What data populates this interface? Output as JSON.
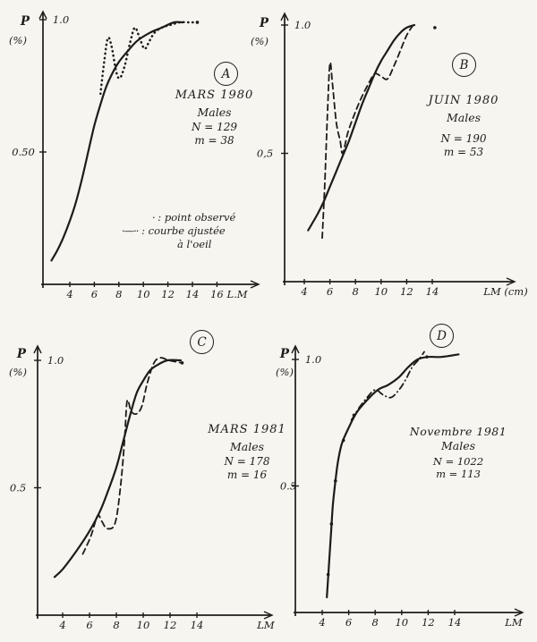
{
  "page": {
    "background": "#f6f5f0",
    "ink": "#1d1c1a"
  },
  "legend": {
    "row1_symbol": "·",
    "row1_label": " : point observé",
    "row2_symbol": "·—··",
    "row2_label": " : courbe ajustée",
    "row3_label": "à l'oeil"
  },
  "chart_data": [
    {
      "id": "A",
      "type": "line",
      "panel_label": "A",
      "title": "MARS 1980",
      "subtitle": "Males",
      "n_label": "N = 129",
      "m_label": "m = 38",
      "y_label": "P",
      "y_label2": "(%)",
      "x_axis_label": "L.M",
      "xlim": [
        2,
        17.5
      ],
      "ylim": [
        0,
        1.05
      ],
      "grid": false,
      "x_ticks": [
        4,
        6,
        8,
        10,
        12,
        14,
        16
      ],
      "y_ticks": [
        {
          "value": 1.0,
          "label": "1.0",
          "side": "right"
        },
        {
          "value": 0.5,
          "label": "0.50",
          "side": "left"
        }
      ],
      "series": [
        {
          "name": "courbe ajustée à l'oeil",
          "style": "solid",
          "points": [
            [
              2.5,
              0.09
            ],
            [
              3,
              0.13
            ],
            [
              3.5,
              0.18
            ],
            [
              4,
              0.24
            ],
            [
              4.5,
              0.31
            ],
            [
              5,
              0.4
            ],
            [
              5.5,
              0.5
            ],
            [
              6,
              0.6
            ],
            [
              6.5,
              0.68
            ],
            [
              7,
              0.75
            ],
            [
              7.5,
              0.8
            ],
            [
              8,
              0.84
            ],
            [
              8.7,
              0.88
            ],
            [
              9.5,
              0.92
            ],
            [
              10.5,
              0.95
            ],
            [
              11.5,
              0.97
            ],
            [
              12.5,
              0.99
            ],
            [
              13.2,
              0.99
            ]
          ]
        },
        {
          "name": "points observés",
          "style": "dotted",
          "points": [
            [
              6.5,
              0.72
            ],
            [
              6.8,
              0.84
            ],
            [
              7.1,
              0.93
            ],
            [
              7.4,
              0.9
            ],
            [
              7.8,
              0.8
            ],
            [
              8.1,
              0.78
            ],
            [
              8.5,
              0.83
            ],
            [
              8.9,
              0.91
            ],
            [
              9.3,
              0.97
            ],
            [
              9.7,
              0.93
            ],
            [
              10.1,
              0.89
            ],
            [
              10.5,
              0.92
            ],
            [
              10.9,
              0.95
            ],
            [
              11.5,
              0.97
            ],
            [
              12.2,
              0.98
            ],
            [
              13,
              0.99
            ],
            [
              13.8,
              0.99
            ],
            [
              14.4,
              0.99
            ]
          ]
        }
      ],
      "markers": [
        [
          14.4,
          0.99
        ]
      ]
    },
    {
      "id": "B",
      "type": "line",
      "panel_label": "B",
      "title": "JUIN 1980",
      "subtitle": "Males",
      "n_label": "N = 190",
      "m_label": "m = 53",
      "y_label": "P",
      "y_label2": "(%)",
      "x_axis_label": "LM (cm)",
      "xlim": [
        3,
        16.5
      ],
      "ylim": [
        0,
        1.05
      ],
      "grid": false,
      "x_ticks": [
        4,
        6,
        8,
        10,
        12,
        14
      ],
      "y_ticks": [
        {
          "value": 1.0,
          "label": "1.0",
          "side": "right"
        },
        {
          "value": 0.5,
          "label": "0,5",
          "side": "left"
        }
      ],
      "series": [
        {
          "name": "courbe ajustée à l'oeil",
          "style": "solid",
          "points": [
            [
              4.3,
              0.2
            ],
            [
              5,
              0.26
            ],
            [
              5.5,
              0.31
            ],
            [
              6,
              0.37
            ],
            [
              6.5,
              0.43
            ],
            [
              7,
              0.49
            ],
            [
              7.5,
              0.55
            ],
            [
              8,
              0.62
            ],
            [
              8.5,
              0.69
            ],
            [
              9,
              0.75
            ],
            [
              9.5,
              0.81
            ],
            [
              10,
              0.86
            ],
            [
              10.5,
              0.9
            ],
            [
              11,
              0.94
            ],
            [
              11.5,
              0.97
            ],
            [
              12,
              0.99
            ],
            [
              12.6,
              1.0
            ]
          ]
        },
        {
          "name": "points observés",
          "style": "dashed",
          "points": [
            [
              5.4,
              0.17
            ],
            [
              5.6,
              0.38
            ],
            [
              5.8,
              0.64
            ],
            [
              6,
              0.85
            ],
            [
              6.2,
              0.77
            ],
            [
              6.5,
              0.62
            ],
            [
              6.8,
              0.55
            ],
            [
              7,
              0.5
            ],
            [
              7.4,
              0.58
            ],
            [
              7.9,
              0.65
            ],
            [
              8.4,
              0.71
            ],
            [
              9,
              0.77
            ],
            [
              9.5,
              0.81
            ],
            [
              10,
              0.8
            ],
            [
              10.5,
              0.79
            ],
            [
              11,
              0.84
            ],
            [
              11.5,
              0.9
            ],
            [
              12,
              0.96
            ],
            [
              12.5,
              1.0
            ]
          ]
        }
      ],
      "markers": [
        [
          14.2,
          0.99
        ]
      ]
    },
    {
      "id": "C",
      "type": "line",
      "panel_label": "C",
      "title": "MARS 1981",
      "subtitle": "Males",
      "n_label": "N = 178",
      "m_label": "m = 16",
      "y_label": "P",
      "y_label2": "(%)",
      "x_axis_label": "LM",
      "xlim": [
        3,
        17
      ],
      "ylim": [
        0,
        1.05
      ],
      "grid": false,
      "x_ticks": [
        4,
        6,
        8,
        10,
        12,
        14
      ],
      "y_ticks": [
        {
          "value": 1.0,
          "label": "1.0",
          "side": "right"
        },
        {
          "value": 0.5,
          "label": "0.5",
          "side": "left"
        }
      ],
      "series": [
        {
          "name": "courbe ajustée à l'oeil",
          "style": "solid",
          "points": [
            [
              3.4,
              0.15
            ],
            [
              4,
              0.18
            ],
            [
              5,
              0.25
            ],
            [
              6,
              0.33
            ],
            [
              6.8,
              0.41
            ],
            [
              7.4,
              0.49
            ],
            [
              8,
              0.58
            ],
            [
              8.5,
              0.68
            ],
            [
              9,
              0.78
            ],
            [
              9.5,
              0.87
            ],
            [
              10,
              0.92
            ],
            [
              10.5,
              0.96
            ],
            [
              11,
              0.98
            ],
            [
              11.8,
              1.0
            ],
            [
              12.8,
              1.0
            ]
          ]
        },
        {
          "name": "points observés",
          "style": "dashed",
          "points": [
            [
              5.5,
              0.24
            ],
            [
              6.1,
              0.31
            ],
            [
              6.6,
              0.39
            ],
            [
              6.9,
              0.37
            ],
            [
              7.3,
              0.34
            ],
            [
              7.9,
              0.36
            ],
            [
              8.3,
              0.5
            ],
            [
              8.6,
              0.68
            ],
            [
              8.8,
              0.84
            ],
            [
              9.1,
              0.8
            ],
            [
              9.5,
              0.79
            ],
            [
              9.9,
              0.82
            ],
            [
              10.3,
              0.91
            ],
            [
              10.8,
              0.99
            ],
            [
              11.3,
              1.01
            ],
            [
              11.9,
              1.0
            ],
            [
              12.9,
              0.99
            ]
          ]
        }
      ],
      "markers": [
        [
          12.9,
          0.99
        ]
      ]
    },
    {
      "id": "D",
      "type": "line",
      "panel_label": "D",
      "title": "Novembre 1981",
      "subtitle": "Males",
      "n_label": "N = 1022",
      "m_label": "m = 113",
      "y_label": "P",
      "y_label2": "(%)",
      "x_axis_label": "LM",
      "xlim": [
        3,
        16
      ],
      "ylim": [
        0,
        1.05
      ],
      "grid": false,
      "x_ticks": [
        4,
        6,
        8,
        10,
        12,
        14
      ],
      "y_ticks": [
        {
          "value": 1.0,
          "label": "1.0",
          "side": "right"
        },
        {
          "value": 0.5,
          "label": "0.5",
          "side": "left"
        }
      ],
      "series": [
        {
          "name": "courbe ajustée à l'oeil",
          "style": "solid",
          "points": [
            [
              4.35,
              0.06
            ],
            [
              4.5,
              0.18
            ],
            [
              4.65,
              0.3
            ],
            [
              4.8,
              0.42
            ],
            [
              5,
              0.52
            ],
            [
              5.2,
              0.6
            ],
            [
              5.5,
              0.67
            ],
            [
              6,
              0.73
            ],
            [
              6.6,
              0.79
            ],
            [
              7.4,
              0.84
            ],
            [
              8.2,
              0.88
            ],
            [
              9,
              0.9
            ],
            [
              9.8,
              0.93
            ],
            [
              10.5,
              0.97
            ],
            [
              11.2,
              1.0
            ],
            [
              12,
              1.01
            ],
            [
              13,
              1.01
            ],
            [
              14.3,
              1.02
            ]
          ]
        },
        {
          "name": "points observés",
          "style": "dashdot",
          "points": [
            [
              6.2,
              0.76
            ],
            [
              6.8,
              0.81
            ],
            [
              7.4,
              0.85
            ],
            [
              8,
              0.88
            ],
            [
              8.6,
              0.86
            ],
            [
              9.2,
              0.85
            ],
            [
              9.8,
              0.88
            ],
            [
              10.3,
              0.92
            ],
            [
              10.8,
              0.97
            ],
            [
              11.3,
              1.0
            ],
            [
              11.7,
              1.03
            ]
          ]
        }
      ],
      "markers": [
        [
          4.45,
          0.15
        ],
        [
          4.7,
          0.35
        ],
        [
          5,
          0.52
        ],
        [
          5.6,
          0.68
        ],
        [
          6.4,
          0.78
        ],
        [
          7.5,
          0.85
        ],
        [
          11.9,
          1.01
        ]
      ]
    }
  ]
}
